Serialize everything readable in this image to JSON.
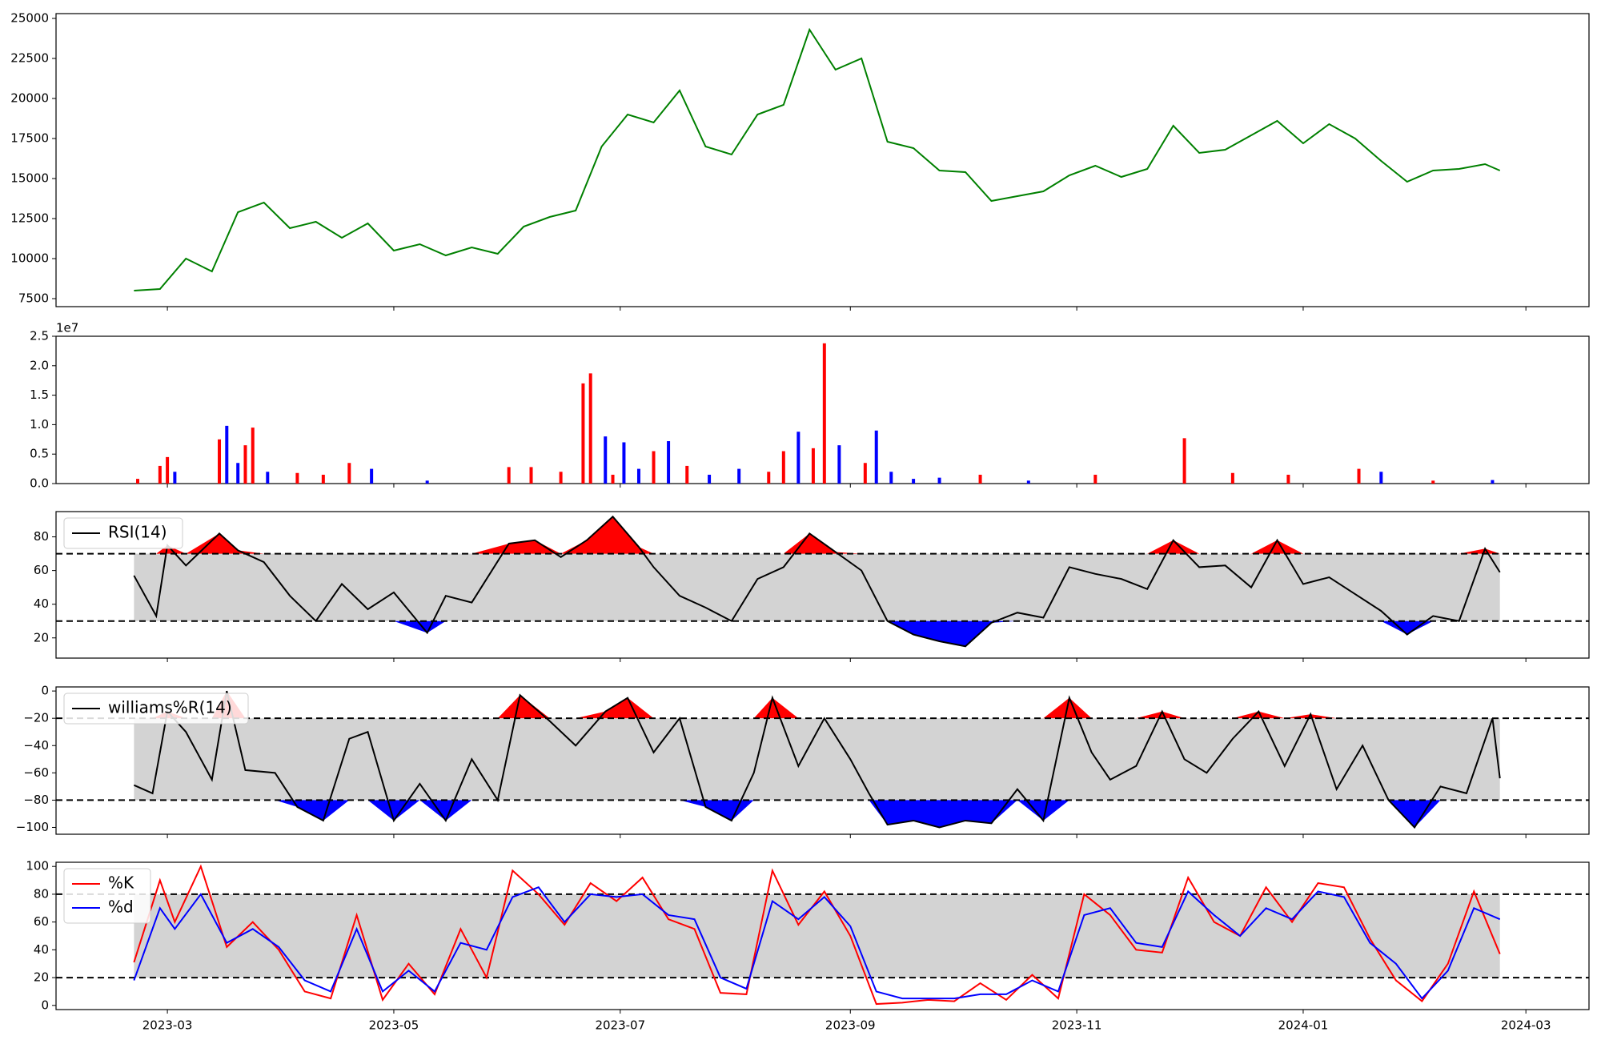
{
  "chart_data": [
    {
      "type": "line",
      "panel": "price",
      "title": "",
      "ylim": [
        7000,
        25300
      ],
      "yticks": [
        7500,
        10000,
        12500,
        15000,
        17500,
        20000,
        22500,
        25000
      ],
      "color": "#008000",
      "series": [
        {
          "x": [
            "2023-02-20",
            "2023-02-27",
            "2023-03-06",
            "2023-03-13",
            "2023-03-20",
            "2023-03-27",
            "2023-04-03",
            "2023-04-10",
            "2023-04-17",
            "2023-04-24",
            "2023-05-01",
            "2023-05-08",
            "2023-05-15",
            "2023-05-22",
            "2023-05-29",
            "2023-06-05",
            "2023-06-12",
            "2023-06-19",
            "2023-06-26",
            "2023-07-03",
            "2023-07-10",
            "2023-07-17",
            "2023-07-24",
            "2023-07-31",
            "2023-08-07",
            "2023-08-14",
            "2023-08-21",
            "2023-08-28",
            "2023-09-04",
            "2023-09-11",
            "2023-09-18",
            "2023-09-25",
            "2023-10-02",
            "2023-10-09",
            "2023-10-16",
            "2023-10-23",
            "2023-10-30",
            "2023-11-06",
            "2023-11-13",
            "2023-11-20",
            "2023-11-27",
            "2023-12-04",
            "2023-12-11",
            "2023-12-18",
            "2023-12-25",
            "2024-01-01",
            "2024-01-08",
            "2024-01-15",
            "2024-01-22",
            "2024-01-29",
            "2024-02-05",
            "2024-02-12",
            "2024-02-19",
            "2024-02-23"
          ],
          "values": [
            8000,
            8100,
            10000,
            9200,
            12900,
            13500,
            11900,
            12300,
            11300,
            12200,
            10500,
            10900,
            10200,
            10700,
            10300,
            12000,
            12600,
            13000,
            17000,
            19000,
            18500,
            20500,
            17000,
            16500,
            19000,
            19600,
            24300,
            21800,
            22500,
            17300,
            16900,
            15500,
            15400,
            13600,
            13900,
            14200,
            15200,
            15800,
            15100,
            15600,
            18300,
            16600,
            16800,
            17700,
            18600,
            17200,
            18400,
            17500,
            16100,
            14800,
            15500,
            15600,
            15900,
            15500
          ]
        }
      ]
    },
    {
      "type": "bar",
      "panel": "volume",
      "axis_offset_label": "1e7",
      "ylim": [
        0,
        2.5
      ],
      "yticks": [
        0.0,
        0.5,
        1.0,
        1.5,
        2.0,
        2.5
      ],
      "colors": {
        "up": "#ff0000",
        "down": "#0000ff",
        "flat": "#000000"
      },
      "series": [
        {
          "x": [
            "2023-02-21",
            "2023-02-27",
            "2023-03-01",
            "2023-03-03",
            "2023-03-15",
            "2023-03-17",
            "2023-03-20",
            "2023-03-22",
            "2023-03-24",
            "2023-03-28",
            "2023-04-05",
            "2023-04-12",
            "2023-04-19",
            "2023-04-25",
            "2023-05-10",
            "2023-06-01",
            "2023-06-07",
            "2023-06-15",
            "2023-06-21",
            "2023-06-23",
            "2023-06-27",
            "2023-06-29",
            "2023-07-02",
            "2023-07-06",
            "2023-07-10",
            "2023-07-14",
            "2023-07-19",
            "2023-07-25",
            "2023-08-02",
            "2023-08-10",
            "2023-08-14",
            "2023-08-18",
            "2023-08-22",
            "2023-08-25",
            "2023-08-29",
            "2023-09-05",
            "2023-09-08",
            "2023-09-12",
            "2023-09-18",
            "2023-09-25",
            "2023-10-06",
            "2023-10-19",
            "2023-11-06",
            "2023-11-30",
            "2023-12-13",
            "2023-12-28",
            "2024-01-16",
            "2024-01-22",
            "2024-02-05",
            "2024-02-21"
          ],
          "values": [
            0.08,
            0.3,
            0.45,
            0.2,
            0.75,
            0.98,
            0.35,
            0.65,
            0.95,
            0.2,
            0.18,
            0.15,
            0.35,
            0.25,
            0.05,
            0.28,
            0.28,
            0.2,
            1.7,
            1.87,
            0.8,
            0.15,
            0.7,
            0.25,
            0.55,
            0.72,
            0.3,
            0.15,
            0.25,
            0.2,
            0.55,
            0.88,
            0.6,
            2.38,
            0.65,
            0.35,
            0.9,
            0.2,
            0.08,
            0.1,
            0.15,
            0.05,
            0.15,
            0.77,
            0.18,
            0.15,
            0.25,
            0.2,
            0.05,
            0.06
          ],
          "direction": [
            "up",
            "up",
            "up",
            "down",
            "up",
            "down",
            "down",
            "up",
            "up",
            "down",
            "up",
            "up",
            "up",
            "down",
            "down",
            "up",
            "up",
            "up",
            "up",
            "up",
            "down",
            "up",
            "down",
            "down",
            "up",
            "down",
            "up",
            "down",
            "down",
            "up",
            "up",
            "down",
            "up",
            "up",
            "down",
            "up",
            "down",
            "down",
            "down",
            "down",
            "up",
            "down",
            "up",
            "up",
            "up",
            "up",
            "up",
            "down",
            "up",
            "down"
          ]
        }
      ]
    },
    {
      "type": "line",
      "panel": "rsi",
      "ylim": [
        8,
        95
      ],
      "yticks": [
        20,
        40,
        60,
        80
      ],
      "upper": 70,
      "lower": 30,
      "legend": [
        "RSI(14)"
      ],
      "series": [
        {
          "name": "RSI(14)",
          "x": [
            "2023-02-20",
            "2023-02-26",
            "2023-03-01",
            "2023-03-06",
            "2023-03-15",
            "2023-03-20",
            "2023-03-27",
            "2023-04-03",
            "2023-04-10",
            "2023-04-17",
            "2023-04-24",
            "2023-05-01",
            "2023-05-10",
            "2023-05-15",
            "2023-05-22",
            "2023-06-01",
            "2023-06-08",
            "2023-06-15",
            "2023-06-22",
            "2023-06-29",
            "2023-07-06",
            "2023-07-10",
            "2023-07-17",
            "2023-07-24",
            "2023-07-31",
            "2023-08-07",
            "2023-08-14",
            "2023-08-21",
            "2023-08-28",
            "2023-09-04",
            "2023-09-11",
            "2023-09-18",
            "2023-09-25",
            "2023-10-02",
            "2023-10-09",
            "2023-10-16",
            "2023-10-23",
            "2023-10-30",
            "2023-11-06",
            "2023-11-13",
            "2023-11-20",
            "2023-11-27",
            "2023-12-04",
            "2023-12-11",
            "2023-12-18",
            "2023-12-25",
            "2024-01-01",
            "2024-01-08",
            "2024-01-15",
            "2024-01-22",
            "2024-01-29",
            "2024-02-05",
            "2024-02-12",
            "2024-02-19",
            "2024-02-23"
          ],
          "values": [
            57,
            33,
            75,
            63,
            82,
            72,
            65,
            45,
            30,
            52,
            37,
            47,
            23,
            45,
            41,
            76,
            78,
            68,
            78,
            92,
            74,
            62,
            45,
            38,
            30,
            55,
            62,
            82,
            71,
            60,
            30,
            22,
            18,
            15,
            29,
            35,
            32,
            62,
            58,
            55,
            49,
            78,
            62,
            63,
            50,
            78,
            52,
            56,
            46,
            36,
            22,
            33,
            30,
            73,
            59
          ]
        }
      ]
    },
    {
      "type": "line",
      "panel": "williams",
      "ylim": [
        -105,
        3
      ],
      "yticks": [
        -100,
        -80,
        -60,
        -40,
        -20,
        0
      ],
      "upper": -20,
      "lower": -80,
      "legend": [
        "williams%R(14)"
      ],
      "series": [
        {
          "name": "williams%R(14)",
          "x": [
            "2023-02-20",
            "2023-02-25",
            "2023-03-01",
            "2023-03-06",
            "2023-03-13",
            "2023-03-17",
            "2023-03-22",
            "2023-03-30",
            "2023-04-05",
            "2023-04-12",
            "2023-04-19",
            "2023-04-24",
            "2023-05-01",
            "2023-05-08",
            "2023-05-15",
            "2023-05-22",
            "2023-05-29",
            "2023-06-04",
            "2023-06-12",
            "2023-06-19",
            "2023-06-27",
            "2023-07-03",
            "2023-07-10",
            "2023-07-17",
            "2023-07-24",
            "2023-07-31",
            "2023-08-06",
            "2023-08-11",
            "2023-08-18",
            "2023-08-25",
            "2023-09-01",
            "2023-09-06",
            "2023-09-11",
            "2023-09-18",
            "2023-09-25",
            "2023-10-02",
            "2023-10-09",
            "2023-10-16",
            "2023-10-23",
            "2023-10-30",
            "2023-11-05",
            "2023-11-10",
            "2023-11-17",
            "2023-11-24",
            "2023-11-30",
            "2023-12-06",
            "2023-12-13",
            "2023-12-20",
            "2023-12-27",
            "2024-01-03",
            "2024-01-10",
            "2024-01-17",
            "2024-01-24",
            "2024-01-31",
            "2024-02-07",
            "2024-02-14",
            "2024-02-21",
            "2024-02-23"
          ],
          "values": [
            -69,
            -75,
            -15,
            -30,
            -65,
            0,
            -58,
            -60,
            -85,
            -95,
            -35,
            -30,
            -95,
            -68,
            -95,
            -50,
            -80,
            -3,
            -22,
            -40,
            -15,
            -5,
            -45,
            -20,
            -85,
            -95,
            -60,
            -5,
            -55,
            -20,
            -50,
            -75,
            -98,
            -95,
            -100,
            -95,
            -97,
            -72,
            -95,
            -5,
            -45,
            -65,
            -55,
            -15,
            -50,
            -60,
            -35,
            -15,
            -55,
            -17,
            -72,
            -40,
            -80,
            -100,
            -70,
            -75,
            -20,
            -64
          ]
        }
      ]
    },
    {
      "type": "line",
      "panel": "stochastic",
      "ylim": [
        -3,
        103
      ],
      "yticks": [
        0,
        20,
        40,
        60,
        80,
        100
      ],
      "upper": 80,
      "lower": 20,
      "legend": [
        "%K",
        "%d"
      ],
      "series": [
        {
          "name": "%K",
          "color": "#ff0000",
          "x": [
            "2023-02-20",
            "2023-02-27",
            "2023-03-03",
            "2023-03-10",
            "2023-03-17",
            "2023-03-24",
            "2023-03-31",
            "2023-04-07",
            "2023-04-14",
            "2023-04-21",
            "2023-04-28",
            "2023-05-05",
            "2023-05-12",
            "2023-05-19",
            "2023-05-26",
            "2023-06-02",
            "2023-06-09",
            "2023-06-16",
            "2023-06-23",
            "2023-06-30",
            "2023-07-07",
            "2023-07-14",
            "2023-07-21",
            "2023-07-28",
            "2023-08-04",
            "2023-08-11",
            "2023-08-18",
            "2023-08-25",
            "2023-09-01",
            "2023-09-08",
            "2023-09-15",
            "2023-09-22",
            "2023-09-29",
            "2023-10-06",
            "2023-10-13",
            "2023-10-20",
            "2023-10-27",
            "2023-11-03",
            "2023-11-10",
            "2023-11-17",
            "2023-11-24",
            "2023-12-01",
            "2023-12-08",
            "2023-12-15",
            "2023-12-22",
            "2023-12-29",
            "2024-01-05",
            "2024-01-12",
            "2024-01-19",
            "2024-01-26",
            "2024-02-02",
            "2024-02-09",
            "2024-02-16",
            "2024-02-23"
          ],
          "values": [
            31,
            90,
            60,
            100,
            42,
            60,
            40,
            10,
            5,
            65,
            4,
            30,
            8,
            55,
            20,
            97,
            80,
            58,
            88,
            75,
            92,
            62,
            55,
            9,
            8,
            97,
            58,
            82,
            50,
            1,
            2,
            4,
            3,
            16,
            4,
            22,
            5,
            80,
            65,
            40,
            38,
            92,
            60,
            50,
            85,
            60,
            88,
            85,
            48,
            18,
            3,
            30,
            82,
            37
          ]
        },
        {
          "name": "%d",
          "color": "#0000ff",
          "x": [
            "2023-02-20",
            "2023-02-27",
            "2023-03-03",
            "2023-03-10",
            "2023-03-17",
            "2023-03-24",
            "2023-03-31",
            "2023-04-07",
            "2023-04-14",
            "2023-04-21",
            "2023-04-28",
            "2023-05-05",
            "2023-05-12",
            "2023-05-19",
            "2023-05-26",
            "2023-06-02",
            "2023-06-09",
            "2023-06-16",
            "2023-06-23",
            "2023-06-30",
            "2023-07-07",
            "2023-07-14",
            "2023-07-21",
            "2023-07-28",
            "2023-08-04",
            "2023-08-11",
            "2023-08-18",
            "2023-08-25",
            "2023-09-01",
            "2023-09-08",
            "2023-09-15",
            "2023-09-22",
            "2023-09-29",
            "2023-10-06",
            "2023-10-13",
            "2023-10-20",
            "2023-10-27",
            "2023-11-03",
            "2023-11-10",
            "2023-11-17",
            "2023-11-24",
            "2023-12-01",
            "2023-12-08",
            "2023-12-15",
            "2023-12-22",
            "2023-12-29",
            "2024-01-05",
            "2024-01-12",
            "2024-01-19",
            "2024-01-26",
            "2024-02-02",
            "2024-02-09",
            "2024-02-16",
            "2024-02-23"
          ],
          "values": [
            18,
            70,
            55,
            80,
            45,
            55,
            42,
            18,
            10,
            55,
            10,
            25,
            10,
            45,
            40,
            78,
            85,
            60,
            80,
            78,
            80,
            65,
            62,
            20,
            12,
            75,
            62,
            78,
            57,
            10,
            5,
            5,
            5,
            8,
            8,
            18,
            10,
            65,
            70,
            45,
            42,
            82,
            65,
            50,
            70,
            62,
            82,
            78,
            45,
            30,
            5,
            25,
            70,
            62
          ]
        }
      ]
    }
  ],
  "xaxis": {
    "ticks": [
      "2023-03",
      "2023-05",
      "2023-07",
      "2023-09",
      "2023-11",
      "2024-01",
      "2024-03"
    ],
    "range": [
      "2023-01-30",
      "2024-03-18"
    ]
  },
  "colors": {
    "fill_band": "#d3d3d3",
    "overbought": "#ff0000",
    "oversold": "#0000ff",
    "line": "#000000"
  }
}
